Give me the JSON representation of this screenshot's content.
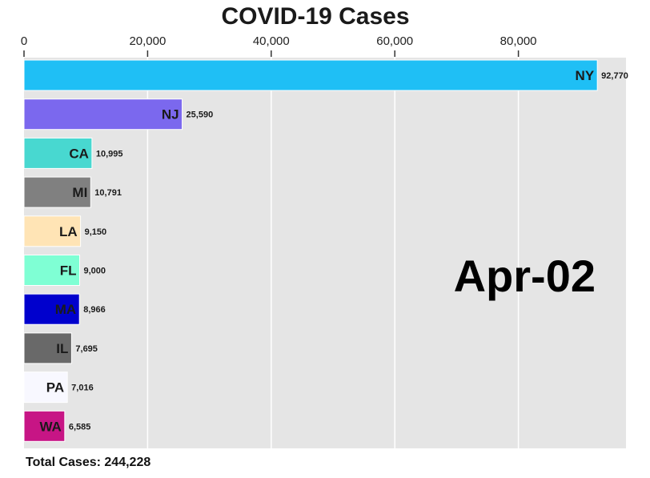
{
  "chart_data": {
    "type": "bar",
    "orientation": "horizontal",
    "title": "COVID-19 Cases",
    "date_label": "Apr-02",
    "footer": "Total Cases: 244,228",
    "xlim": [
      0,
      100000
    ],
    "x_ticks": [
      0,
      20000,
      40000,
      60000,
      80000
    ],
    "x_tick_labels": [
      "0",
      "20,000",
      "40,000",
      "60,000",
      "80,000"
    ],
    "x_axis_position": "top",
    "grid": true,
    "background_color": "#e5e5e5",
    "categories": [
      "NY",
      "NJ",
      "CA",
      "MI",
      "LA",
      "FL",
      "MA",
      "IL",
      "PA",
      "WA"
    ],
    "values": [
      92770,
      25590,
      10995,
      10791,
      9150,
      9000,
      8966,
      7695,
      7016,
      6585
    ],
    "value_labels": [
      "92,770",
      "25,590",
      "10,995",
      "10,791",
      "9,150",
      "9,000",
      "8,966",
      "7,695",
      "7,016",
      "6,585"
    ],
    "colors": [
      "#1fbff5",
      "#7b68ee",
      "#48d8d0",
      "#808080",
      "#ffe4b5",
      "#7fffd4",
      "#0000cd",
      "#696969",
      "#f8f8ff",
      "#c71585"
    ]
  }
}
